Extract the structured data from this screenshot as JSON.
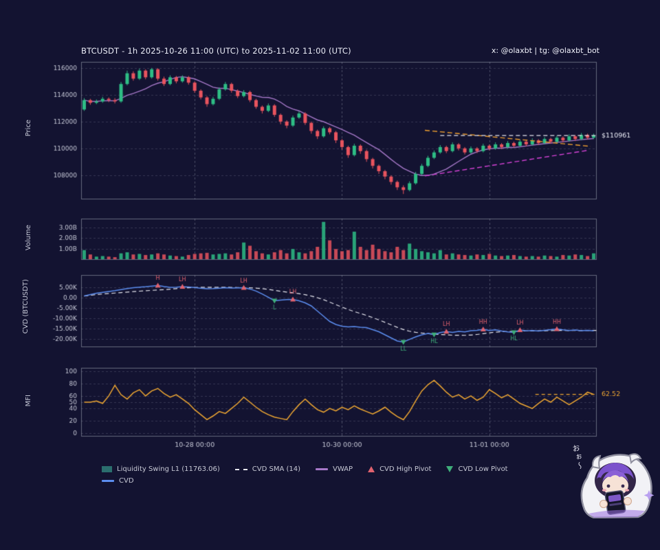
{
  "header": {
    "title": "BTCUSDT - 1h 2025-10-26 11:00 (UTC) to 2025-11-02 11:00 (UTC)",
    "watermark": "x: @olaxbt | tg: @olaxbt_bot"
  },
  "colors": {
    "background": "#131331",
    "panel_border": "#aab0c0",
    "grid": "#9296ab",
    "text": "#c6c8d6",
    "title_text": "#eceef8",
    "candle_up": "#2ebd85",
    "candle_down": "#e8545e",
    "cvd_line": "#5c8ef0",
    "cvd_sma": "#e8e8f0",
    "vwap": "#a678c8",
    "mfi_line": "#f0a832",
    "trend_down": "#f0a030",
    "trend_up": "#d843d8",
    "pivot_high": "#e0626e",
    "pivot_low": "#3fae7a",
    "last_price_line": "#e8e8f0"
  },
  "axis_titles": {
    "price": "Price",
    "volume": "Volume",
    "cvd": "CVD (BTCUSDT)",
    "mfi": "MFI"
  },
  "xaxis": {
    "total_hours": 168,
    "gridline_hours": [
      37,
      85,
      133
    ],
    "labels": [
      "10-28 00:00",
      "10-30 00:00",
      "11-01 00:00"
    ]
  },
  "panels": {
    "price": {
      "yticks": [
        108000,
        110000,
        112000,
        114000,
        116000
      ],
      "ytick_labels": [
        "108000",
        "110000",
        "112000",
        "114000",
        "116000"
      ],
      "last_price": 110961,
      "last_price_label": "$110961"
    },
    "volume": {
      "yticks": [
        1,
        2,
        3
      ],
      "ytick_labels": [
        "1.00B",
        "2.00B",
        "3.00B"
      ]
    },
    "cvd": {
      "yticks": [
        5000,
        0,
        -5000,
        -10000,
        -15000,
        -20000
      ],
      "ytick_labels": [
        "5.00K",
        "0.00",
        "-5.00K",
        "-10.00K",
        "-15.00K",
        "-20.00K"
      ]
    },
    "mfi": {
      "yticks": [
        0,
        20,
        40,
        50,
        60,
        80,
        100
      ],
      "ytick_labels": [
        "0",
        "20",
        "40",
        "50",
        "60",
        "80",
        "100"
      ],
      "last_value": 62.52,
      "last_value_label": "62.52"
    }
  },
  "legend": [
    {
      "label": "Liquidity Swing L1 (11763.06)",
      "swatch": "box",
      "color": "#2b6e6e",
      "row": 1
    },
    {
      "label": "CVD SMA (14)",
      "swatch": "dashed-line",
      "color": "#e8e8f0",
      "row": 1
    },
    {
      "label": "VWAP",
      "swatch": "line",
      "color": "#a678c8",
      "row": 1
    },
    {
      "label": "CVD High Pivot",
      "swatch": "triangle-up",
      "color": "#e0626e",
      "row": 1
    },
    {
      "label": "CVD Low Pivot",
      "swatch": "triangle-down",
      "color": "#3fae7a",
      "row": 1
    },
    {
      "label": "CVD",
      "swatch": "line",
      "color": "#5c8ef0",
      "row": 2
    }
  ],
  "mascot": {
    "speech": "おぉ〜"
  },
  "chart_data": [
    {
      "type": "candlestick",
      "panel": "price",
      "title": "BTCUSDT 1h price",
      "interval_hours": 2,
      "ylim": [
        106200,
        116450
      ],
      "candles": [
        [
          112900,
          113750,
          112800,
          113600
        ],
        [
          113600,
          113700,
          113250,
          113400
        ],
        [
          113400,
          113650,
          113300,
          113500
        ],
        [
          113500,
          113850,
          113400,
          113700
        ],
        [
          113700,
          113800,
          113450,
          113600
        ],
        [
          113600,
          113750,
          113350,
          113500
        ],
        [
          113500,
          114950,
          113400,
          114800
        ],
        [
          114800,
          115800,
          114700,
          115600
        ],
        [
          115600,
          115750,
          115050,
          115200
        ],
        [
          115200,
          115950,
          115100,
          115800
        ],
        [
          115800,
          115900,
          115150,
          115300
        ],
        [
          115300,
          116000,
          115200,
          115900
        ],
        [
          115900,
          115980,
          115050,
          115200
        ],
        [
          115200,
          115350,
          114650,
          114800
        ],
        [
          114800,
          115450,
          114700,
          115300
        ],
        [
          115300,
          115400,
          114850,
          115000
        ],
        [
          115000,
          115450,
          114900,
          115300
        ],
        [
          115300,
          115400,
          114750,
          114900
        ],
        [
          114900,
          115000,
          114150,
          114300
        ],
        [
          114300,
          114400,
          113650,
          113800
        ],
        [
          113800,
          113900,
          113100,
          113300
        ],
        [
          113300,
          113850,
          113200,
          113700
        ],
        [
          113700,
          114550,
          113600,
          114400
        ],
        [
          114400,
          114950,
          114300,
          114800
        ],
        [
          114800,
          114900,
          114150,
          114300
        ],
        [
          114300,
          114400,
          113750,
          113900
        ],
        [
          113900,
          114350,
          113800,
          114200
        ],
        [
          114200,
          114300,
          113450,
          113600
        ],
        [
          113600,
          113700,
          112950,
          113100
        ],
        [
          113100,
          113200,
          112600,
          112800
        ],
        [
          112800,
          113350,
          112700,
          113200
        ],
        [
          113200,
          113300,
          112350,
          112500
        ],
        [
          112500,
          112600,
          111800,
          112000
        ],
        [
          112000,
          112100,
          111500,
          111700
        ],
        [
          111700,
          112450,
          111600,
          112300
        ],
        [
          112300,
          112750,
          112200,
          112600
        ],
        [
          112600,
          112700,
          111750,
          111900
        ],
        [
          111900,
          112000,
          111100,
          111300
        ],
        [
          111300,
          111400,
          110700,
          110900
        ],
        [
          110900,
          111650,
          110800,
          111500
        ],
        [
          111500,
          111600,
          111050,
          111200
        ],
        [
          111200,
          111300,
          110400,
          110600
        ],
        [
          110600,
          110700,
          109900,
          110100
        ],
        [
          110100,
          110200,
          109300,
          109500
        ],
        [
          109500,
          110350,
          109400,
          110200
        ],
        [
          110200,
          110300,
          109600,
          109800
        ],
        [
          109800,
          109900,
          109000,
          109200
        ],
        [
          109200,
          109300,
          108500,
          108700
        ],
        [
          108700,
          108800,
          108100,
          108300
        ],
        [
          108300,
          108400,
          107700,
          107900
        ],
        [
          107900,
          108000,
          107300,
          107500
        ],
        [
          107500,
          107600,
          106900,
          107100
        ],
        [
          107100,
          107250,
          106600,
          106900
        ],
        [
          106900,
          107550,
          106800,
          107400
        ],
        [
          107400,
          108250,
          107300,
          108100
        ],
        [
          108100,
          108850,
          108000,
          108700
        ],
        [
          108700,
          109450,
          108600,
          109300
        ],
        [
          109300,
          109850,
          109200,
          109700
        ],
        [
          109700,
          110250,
          109600,
          110100
        ],
        [
          110100,
          110200,
          109650,
          109800
        ],
        [
          109800,
          110450,
          109700,
          110300
        ],
        [
          110300,
          110400,
          109850,
          110000
        ],
        [
          110000,
          110100,
          109550,
          109700
        ],
        [
          109700,
          110150,
          109600,
          110000
        ],
        [
          110000,
          110100,
          109650,
          109800
        ],
        [
          109800,
          110350,
          109700,
          110200
        ],
        [
          110200,
          110300,
          109850,
          110000
        ],
        [
          110000,
          110450,
          109900,
          110300
        ],
        [
          110300,
          110400,
          109950,
          110100
        ],
        [
          110100,
          110550,
          110000,
          110400
        ],
        [
          110400,
          110500,
          110050,
          110200
        ],
        [
          110200,
          110650,
          110100,
          110500
        ],
        [
          110500,
          110600,
          110150,
          110300
        ],
        [
          110300,
          110750,
          110200,
          110600
        ],
        [
          110600,
          110700,
          110250,
          110400
        ],
        [
          110400,
          110850,
          110300,
          110700
        ],
        [
          110700,
          110800,
          110350,
          110500
        ],
        [
          110500,
          110950,
          110400,
          110800
        ],
        [
          110800,
          110900,
          110450,
          110600
        ],
        [
          110600,
          111050,
          110500,
          110900
        ],
        [
          110900,
          111000,
          110550,
          110700
        ],
        [
          110700,
          111150,
          110600,
          111000
        ],
        [
          111000,
          111100,
          110650,
          110800
        ],
        [
          110800,
          111100,
          110700,
          110961
        ]
      ],
      "vwap_window": 10,
      "trendlines": [
        {
          "from_hour": 112,
          "from_price": 111350,
          "to_hour": 166,
          "to_price": 110150,
          "color_key": "trend_down"
        },
        {
          "from_hour": 112,
          "from_price": 107950,
          "to_hour": 165,
          "to_price": 109850,
          "color_key": "trend_up"
        }
      ],
      "hline": {
        "price": 110961,
        "label": "$110961",
        "from_hour": 117
      }
    },
    {
      "type": "bar",
      "panel": "volume",
      "title": "Volume (billions)",
      "ylim": [
        0,
        3.8
      ],
      "values_billions": [
        0.9,
        0.5,
        0.3,
        0.35,
        0.3,
        0.25,
        0.6,
        0.7,
        0.5,
        0.55,
        0.45,
        0.5,
        0.6,
        0.5,
        0.4,
        0.35,
        0.3,
        0.45,
        0.55,
        0.6,
        0.65,
        0.5,
        0.55,
        0.6,
        0.5,
        0.7,
        1.6,
        1.3,
        0.8,
        0.6,
        0.5,
        0.7,
        0.9,
        0.6,
        1.0,
        0.7,
        0.6,
        0.8,
        1.2,
        3.5,
        1.8,
        1.0,
        0.8,
        0.9,
        2.6,
        1.2,
        0.9,
        1.4,
        1.0,
        0.8,
        0.7,
        1.2,
        0.9,
        1.5,
        1.0,
        0.8,
        0.7,
        0.6,
        0.9,
        0.5,
        0.6,
        0.5,
        0.45,
        0.4,
        0.5,
        0.45,
        0.55,
        0.4,
        0.35,
        0.4,
        0.45,
        0.35,
        0.3,
        0.35,
        0.3,
        0.4,
        0.35,
        0.3,
        0.45,
        0.4,
        0.5,
        0.45,
        0.35,
        0.6
      ]
    },
    {
      "type": "line",
      "panel": "cvd",
      "title": "Cumulative Volume Delta",
      "ylim": [
        -24000,
        11000
      ],
      "sma_window": 14,
      "values": [
        800,
        1500,
        2200,
        2600,
        3000,
        3400,
        3900,
        4400,
        4800,
        5100,
        5300,
        5600,
        5900,
        5400,
        5000,
        5100,
        5300,
        5200,
        4900,
        4600,
        4300,
        4400,
        4600,
        4800,
        4700,
        4750,
        4800,
        4200,
        3200,
        1800,
        200,
        -1500,
        -1200,
        -900,
        -800,
        -1500,
        -2500,
        -4000,
        -6500,
        -9000,
        -11500,
        -13000,
        -13800,
        -14200,
        -14000,
        -14300,
        -14500,
        -15500,
        -16500,
        -18000,
        -19500,
        -21000,
        -21500,
        -20200,
        -19000,
        -18000,
        -17300,
        -17900,
        -16900,
        -16400,
        -16800,
        -16300,
        -16600,
        -16000,
        -15800,
        -15300,
        -15900,
        -15600,
        -16200,
        -16600,
        -16800,
        -15700,
        -16100,
        -15900,
        -16200,
        -15800,
        -15500,
        -15200,
        -15600,
        -15900,
        -15700,
        -16000,
        -15800,
        -16100
      ],
      "pivots": [
        {
          "i": 12,
          "kind": "high",
          "label": "H"
        },
        {
          "i": 16,
          "kind": "high",
          "label": "LH"
        },
        {
          "i": 26,
          "kind": "high",
          "label": "LH"
        },
        {
          "i": 31,
          "kind": "low",
          "label": "L"
        },
        {
          "i": 34,
          "kind": "high",
          "label": "LH"
        },
        {
          "i": 52,
          "kind": "low",
          "label": "LL"
        },
        {
          "i": 57,
          "kind": "low",
          "label": "HL"
        },
        {
          "i": 59,
          "kind": "high",
          "label": "LH"
        },
        {
          "i": 65,
          "kind": "high",
          "label": "HH"
        },
        {
          "i": 70,
          "kind": "low",
          "label": "HL"
        },
        {
          "i": 71,
          "kind": "high",
          "label": "LH"
        },
        {
          "i": 77,
          "kind": "high",
          "label": "HH"
        }
      ]
    },
    {
      "type": "line",
      "panel": "mfi",
      "title": "Money Flow Index",
      "ylim": [
        0,
        100
      ],
      "values": [
        50,
        50,
        52,
        48,
        60,
        77,
        62,
        55,
        65,
        70,
        60,
        68,
        72,
        64,
        58,
        62,
        55,
        48,
        38,
        30,
        22,
        28,
        35,
        32,
        40,
        48,
        58,
        50,
        42,
        35,
        30,
        26,
        24,
        22,
        35,
        46,
        55,
        46,
        38,
        34,
        40,
        36,
        42,
        38,
        44,
        39,
        35,
        31,
        36,
        42,
        34,
        27,
        22,
        35,
        52,
        68,
        78,
        85,
        76,
        66,
        58,
        62,
        55,
        60,
        53,
        58,
        70,
        64,
        57,
        62,
        55,
        48,
        44,
        40,
        48,
        55,
        50,
        58,
        52,
        46,
        52,
        58,
        66,
        62.52
      ],
      "hline": {
        "value": 62.52,
        "label": "62.52",
        "from_hour": 148
      }
    }
  ]
}
